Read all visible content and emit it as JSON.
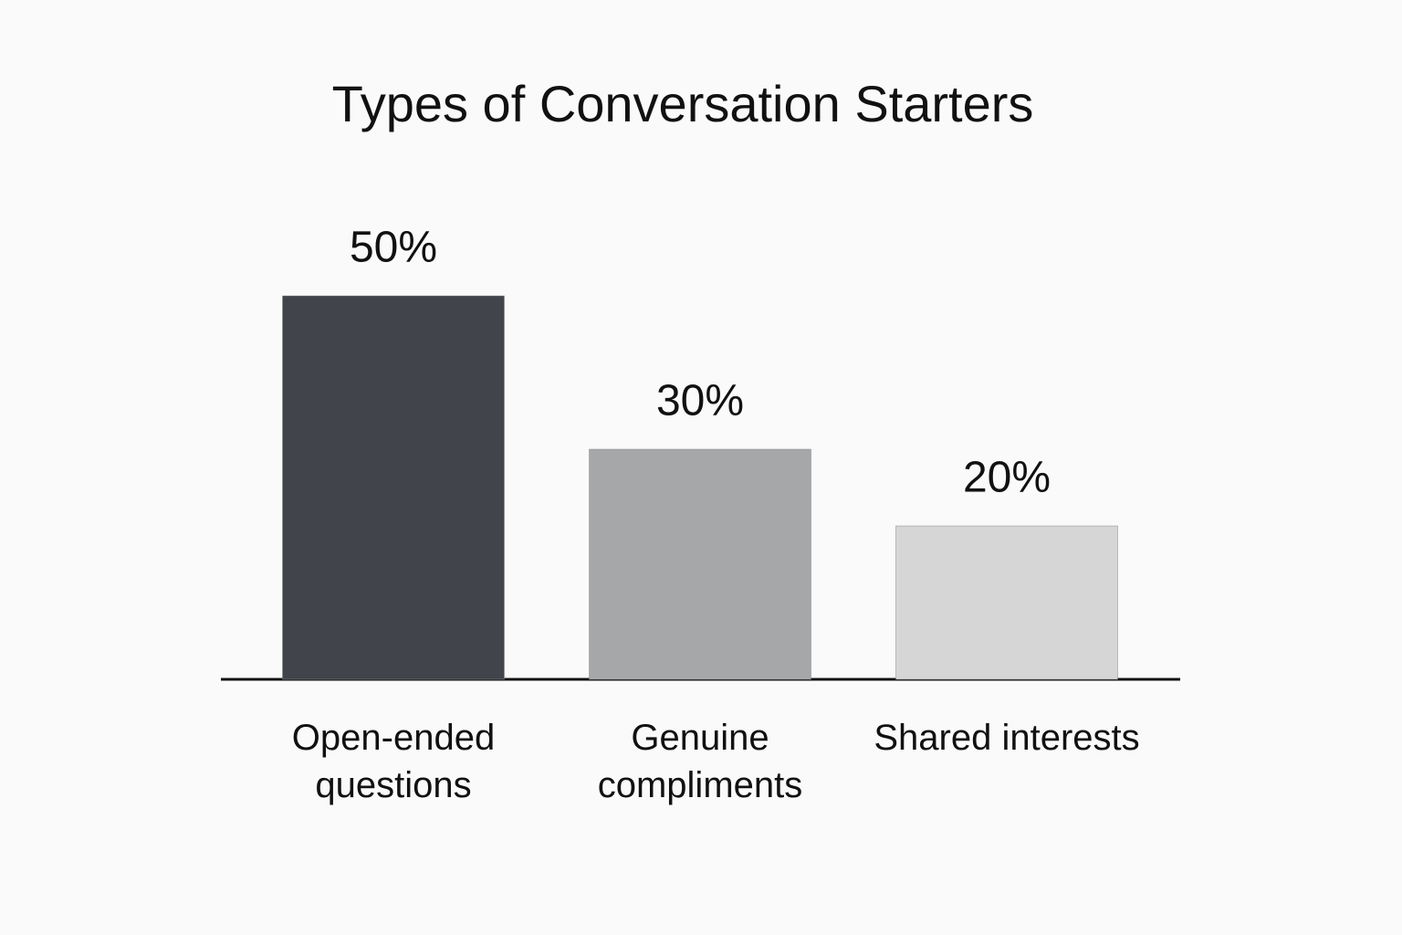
{
  "chart_data": {
    "type": "bar",
    "title": "Types of Conversation Starters",
    "categories": [
      "Open-ended questions",
      "Genuine compliments",
      "Shared interests"
    ],
    "values": [
      50,
      30,
      20
    ],
    "value_labels": [
      "50%",
      "30%",
      "20%"
    ],
    "colors": [
      "#41454b",
      "#a6a7a9",
      "#d6d6d6"
    ]
  }
}
